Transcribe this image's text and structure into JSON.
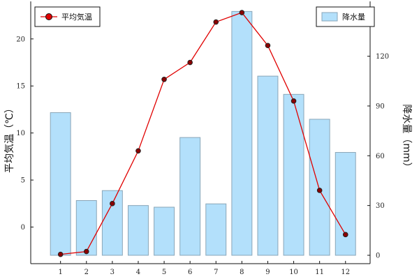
{
  "chart_data": {
    "type": "bar+line",
    "categories": [
      "1",
      "2",
      "3",
      "4",
      "5",
      "6",
      "7",
      "8",
      "9",
      "10",
      "11",
      "12"
    ],
    "bars": {
      "name": "降水量",
      "axis": "right",
      "values": [
        86,
        33,
        39,
        30,
        29,
        71,
        31,
        147,
        108,
        97,
        82,
        62
      ],
      "color": "#b3e0fb",
      "edge_color": "#8aa6b8"
    },
    "line": {
      "name": "平均気温",
      "axis": "left",
      "values": [
        -2.9,
        -2.6,
        2.5,
        8.1,
        15.7,
        17.5,
        21.8,
        22.8,
        19.3,
        13.4,
        3.9,
        -0.8
      ],
      "color": "#e00000",
      "marker_fill": "#8b0000"
    },
    "ylabel_left": "平均気温（℃）",
    "ylabel_right": "降水量（mm）",
    "yticks_left": [
      "0",
      "5",
      "10",
      "15",
      "20"
    ],
    "yticks_right": [
      "0",
      "30",
      "60",
      "90",
      "120"
    ],
    "ylim_left": [
      -3.0,
      23.1
    ],
    "ylim_right": [
      0,
      148
    ],
    "grid": false,
    "legends": [
      {
        "label": "平均気温",
        "placement": "top-left"
      },
      {
        "label": "降水量",
        "placement": "top-right"
      }
    ]
  }
}
